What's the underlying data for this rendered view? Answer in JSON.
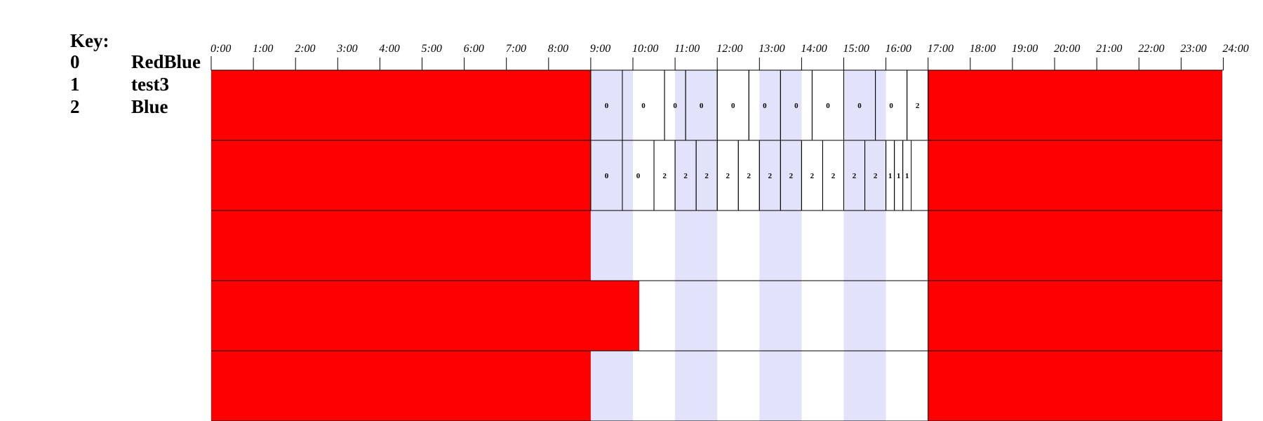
{
  "key": {
    "title": "Key:",
    "entries": [
      {
        "index": "0",
        "label": "RedBlue"
      },
      {
        "index": "1",
        "label": "test3"
      },
      {
        "index": "2",
        "label": "Blue"
      }
    ]
  },
  "timeline": {
    "hour_labels": [
      "0:00",
      "1:00",
      "2:00",
      "3:00",
      "4:00",
      "5:00",
      "6:00",
      "7:00",
      "8:00",
      "9:00",
      "10:00",
      "11:00",
      "12:00",
      "13:00",
      "14:00",
      "15:00",
      "16:00",
      "17:00",
      "18:00",
      "19:00",
      "20:00",
      "21:00",
      "22:00",
      "23:00",
      "24:00"
    ],
    "shaded_hours": [
      9,
      11,
      13,
      15
    ],
    "active_window_hours": [
      9,
      17
    ],
    "unavailable_color": "#ff0000",
    "shade_color": "#e2e2fb",
    "cell_border_color": "#000000"
  },
  "rows": [
    {
      "red_until_hours": 9,
      "cells": [
        {
          "start": 9.0,
          "end": 9.75,
          "label": "0"
        },
        {
          "start": 9.75,
          "end": 10.75,
          "label": "0"
        },
        {
          "start": 10.75,
          "end": 11.25,
          "label": "0"
        },
        {
          "start": 11.25,
          "end": 12.0,
          "label": "0"
        },
        {
          "start": 12.0,
          "end": 12.75,
          "label": "0"
        },
        {
          "start": 12.75,
          "end": 13.5,
          "label": "0"
        },
        {
          "start": 13.5,
          "end": 14.25,
          "label": "0"
        },
        {
          "start": 14.25,
          "end": 15.0,
          "label": "0"
        },
        {
          "start": 15.0,
          "end": 15.75,
          "label": "0"
        },
        {
          "start": 15.75,
          "end": 16.5,
          "label": "0"
        },
        {
          "start": 16.5,
          "end": 17.0,
          "label": "2"
        }
      ]
    },
    {
      "red_until_hours": 9,
      "cells": [
        {
          "start": 9.0,
          "end": 9.75,
          "label": "0"
        },
        {
          "start": 9.75,
          "end": 10.5,
          "label": "0"
        },
        {
          "start": 10.5,
          "end": 11.0,
          "label": "2"
        },
        {
          "start": 11.0,
          "end": 11.5,
          "label": "2"
        },
        {
          "start": 11.5,
          "end": 12.0,
          "label": "2"
        },
        {
          "start": 12.0,
          "end": 12.5,
          "label": "2"
        },
        {
          "start": 12.5,
          "end": 13.0,
          "label": "2"
        },
        {
          "start": 13.0,
          "end": 13.5,
          "label": "2"
        },
        {
          "start": 13.5,
          "end": 14.0,
          "label": "2"
        },
        {
          "start": 14.0,
          "end": 14.5,
          "label": "2"
        },
        {
          "start": 14.5,
          "end": 15.0,
          "label": "2"
        },
        {
          "start": 15.0,
          "end": 15.5,
          "label": "2"
        },
        {
          "start": 15.5,
          "end": 16.0,
          "label": "2"
        },
        {
          "start": 16.0,
          "end": 16.2,
          "label": "1"
        },
        {
          "start": 16.2,
          "end": 16.4,
          "label": "1"
        },
        {
          "start": 16.4,
          "end": 16.6,
          "label": "1"
        }
      ]
    },
    {
      "red_until_hours": 9,
      "cells": []
    },
    {
      "red_until_hours": 10.15,
      "cells": []
    },
    {
      "red_until_hours": 9,
      "cells": []
    }
  ]
}
